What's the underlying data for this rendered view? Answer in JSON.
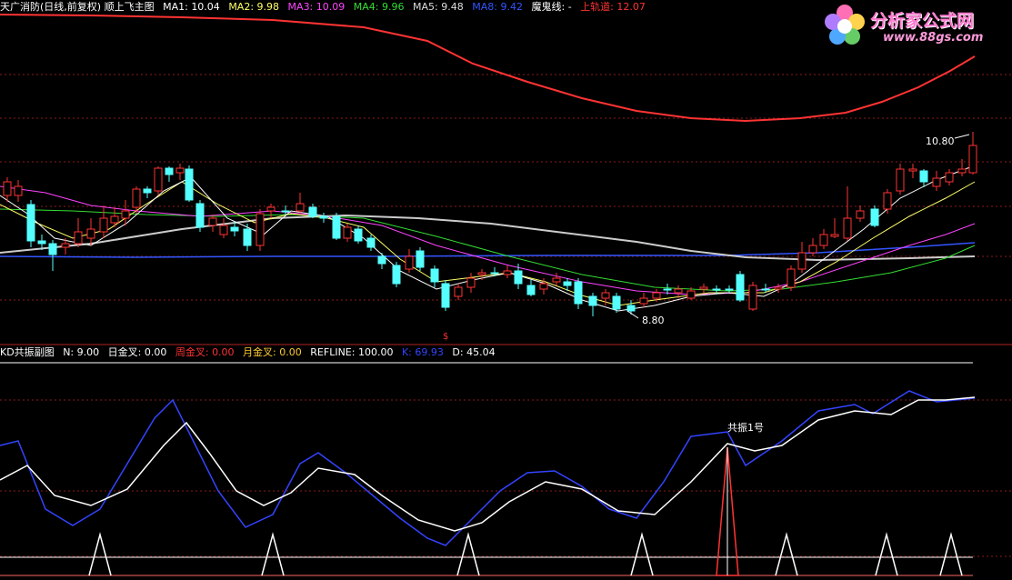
{
  "main_header": {
    "title": "天广消防(日线,前复权) 顺上飞主图",
    "ma1": {
      "label": "MA1:",
      "value": "10.04",
      "color": "#ffffff"
    },
    "ma2": {
      "label": "MA2:",
      "value": "9.98",
      "color": "#ffff66"
    },
    "ma3": {
      "label": "MA3:",
      "value": "10.09",
      "color": "#ff44ff"
    },
    "ma4": {
      "label": "MA4:",
      "value": "9.96",
      "color": "#33dd33"
    },
    "ma5": {
      "label": "MA5:",
      "value": "9.48",
      "color": "#aaaaaa"
    },
    "ma8": {
      "label": "MA8:",
      "value": "9.42",
      "color": "#3355ff"
    },
    "ghost": {
      "label": "魔鬼线:",
      "value": "-",
      "color": "#ffffff"
    },
    "upper": {
      "label": "上轨道:",
      "value": "12.07",
      "color": "#ff3333"
    }
  },
  "price_annotations": {
    "high": "10.80",
    "low": "8.80",
    "marker": "$"
  },
  "sub_header": {
    "title": "KD共振副图",
    "n": {
      "label": "N:",
      "value": "9.00"
    },
    "day_cross": {
      "label": "日金叉:",
      "value": "0.00"
    },
    "week_cross": {
      "label": "周金叉:",
      "value": "0.00",
      "color": "#ff3333"
    },
    "month_cross": {
      "label": "月金叉:",
      "value": "0.00",
      "color": "#ffcc33"
    },
    "refline": {
      "label": "REFLINE:",
      "value": "100.00"
    },
    "k": {
      "label": "K:",
      "value": "69.93",
      "color": "#3344ff"
    },
    "d": {
      "label": "D:",
      "value": "45.04"
    }
  },
  "resonance_label": "共振1号",
  "logo": {
    "title": "分析家公式网",
    "url": "www.88gs.com"
  },
  "colors": {
    "up": "#ff3333",
    "down": "#55ffff",
    "bg": "#000000",
    "grid": "#8b1a1a"
  }
}
